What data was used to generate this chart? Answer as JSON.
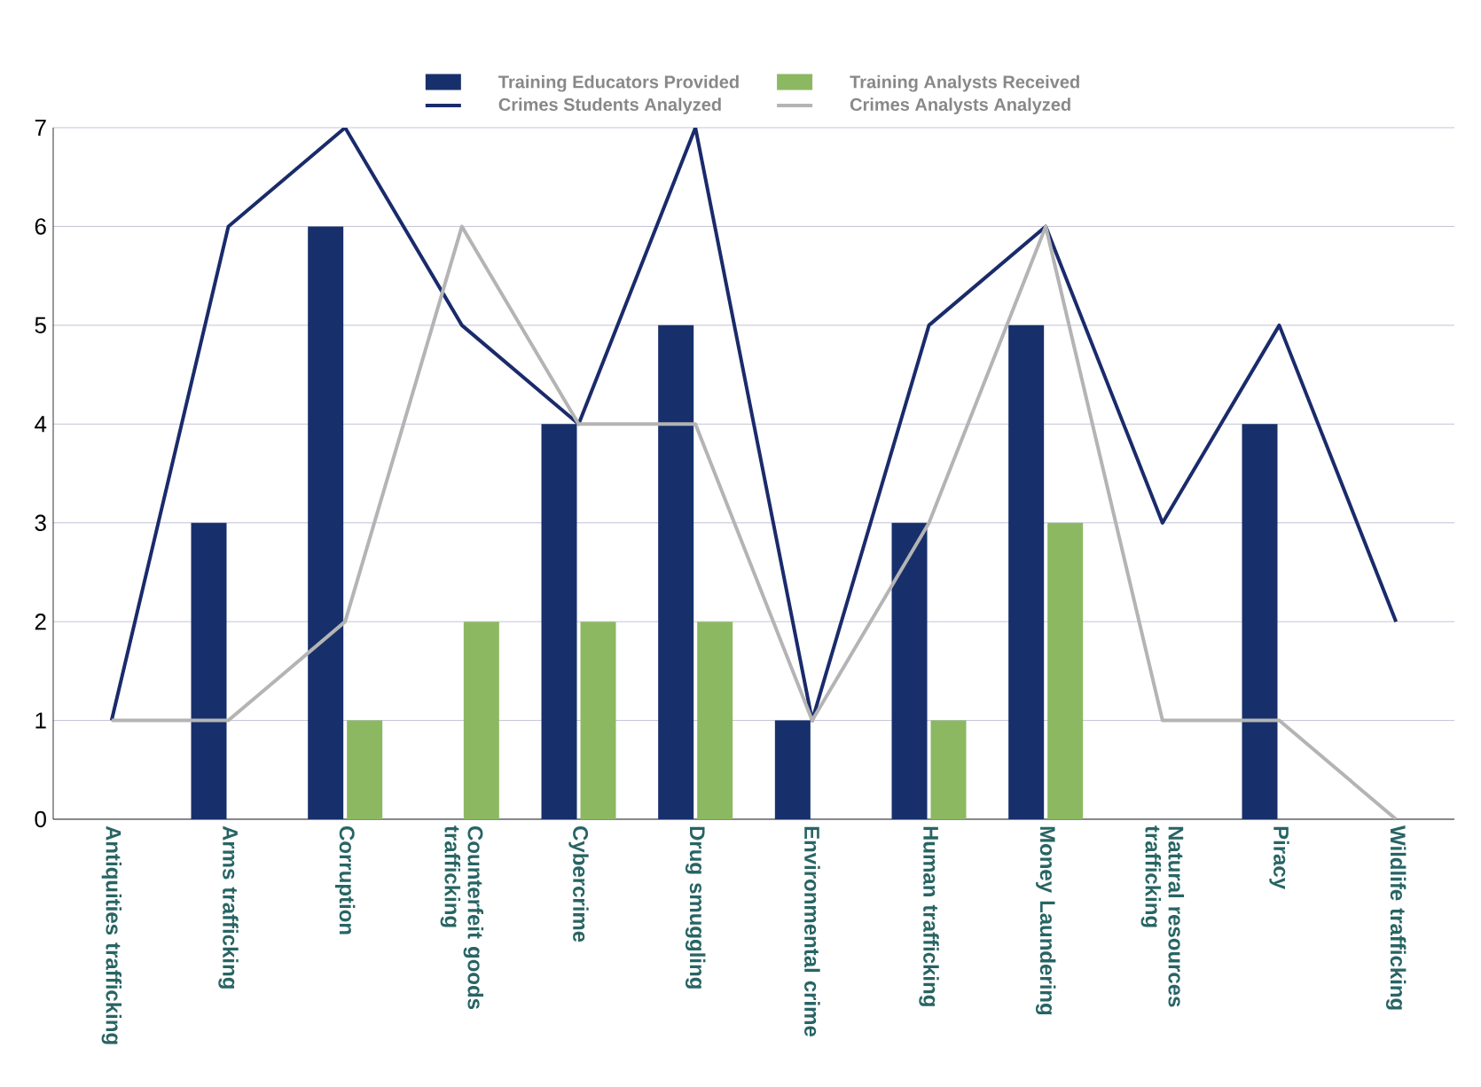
{
  "chart_data": {
    "type": "bar",
    "categories": [
      "Antiquities trafficking",
      "Arms trafficking",
      "Corruption",
      "Counterfeit goods trafficking",
      "Cybercrime",
      "Drug smuggling",
      "Environmental crime",
      "Human trafficking",
      "Money Laundering",
      "Natural resources trafficking",
      "Piracy",
      "Wildlife trafficking"
    ],
    "series": [
      {
        "name": "Training Educators Provided",
        "color": "#17306b",
        "values": [
          0,
          3,
          6,
          0,
          4,
          5,
          1,
          3,
          5,
          0,
          4,
          0
        ]
      },
      {
        "name": "Training Analysts Received",
        "color": "#8cb862",
        "values": [
          0,
          0,
          1,
          2,
          2,
          2,
          0,
          1,
          3,
          0,
          0,
          0
        ]
      },
      {
        "name": "Crimes Students Analyzed",
        "type": "line",
        "color": "#1a2b6b",
        "values": [
          1,
          6,
          7,
          5,
          4,
          7,
          1,
          5,
          6,
          3,
          5,
          2
        ]
      },
      {
        "name": "Crimes Analysts Analyzed",
        "type": "line",
        "color": "#b4b4b4",
        "values": [
          1,
          1,
          2,
          6,
          4,
          4,
          1,
          3,
          6,
          1,
          1,
          0
        ]
      }
    ],
    "ylim": [
      0,
      7
    ],
    "yticks": [
      0,
      1,
      2,
      3,
      4,
      5,
      6,
      7
    ],
    "grid": "y",
    "legend": "top",
    "marker": "none",
    "line_style": "solid"
  }
}
